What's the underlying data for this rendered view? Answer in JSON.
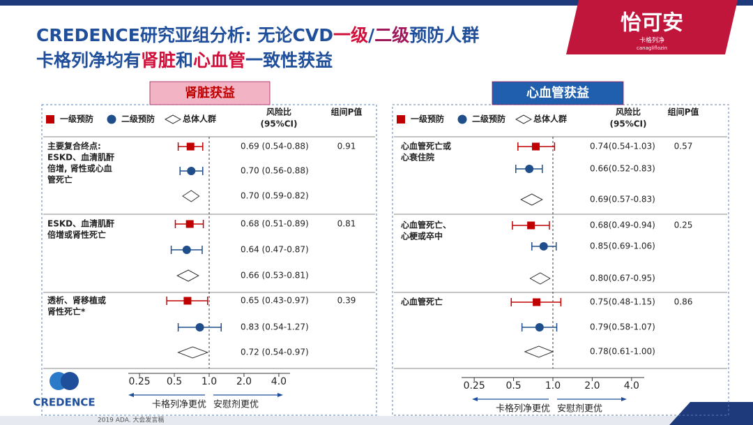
{
  "title": {
    "line1": [
      {
        "text": "CREDENCE研究亚组分析: 无论CVD",
        "color": "#1f4e9a"
      },
      {
        "text": "一级",
        "color": "#d0103a"
      },
      {
        "text": "/",
        "color": "#1f4e9a"
      },
      {
        "text": "二级",
        "color": "#a0185a"
      },
      {
        "text": "预防人群",
        "color": "#1f4e9a"
      }
    ],
    "line2": [
      {
        "text": "卡格列净均有",
        "color": "#1f4e9a"
      },
      {
        "text": "肾脏",
        "color": "#d0103a"
      },
      {
        "text": "和",
        "color": "#1f4e9a"
      },
      {
        "text": "心血管",
        "color": "#d0103a"
      },
      {
        "text": "一致性获益",
        "color": "#1f4e9a"
      }
    ]
  },
  "logo": {
    "name": "怡可安",
    "sub": "卡格列净",
    "latin": "canagliflozin"
  },
  "brand": "CREDENCE",
  "footer": "2019 ADA. 大会发言稿",
  "chart_data": [
    {
      "type": "forest",
      "title": "肾脏获益",
      "log_x": true,
      "hr_header": [
        "风险比",
        "(95%CI)"
      ],
      "p_header": "组间P值",
      "categories": [
        [
          "主要复合终点:",
          "ESKD、血清肌酐",
          "倍增, 肾性或心血",
          "管死亡"
        ],
        [
          "ESKD、血清肌酐",
          "倍增或肾性死亡"
        ],
        [
          "透析、肾移植或",
          "肾性死亡*"
        ]
      ],
      "p_values": [
        0.91,
        0.81,
        0.39
      ],
      "series": [
        {
          "name": "一级预防",
          "color": "#c00000",
          "marker": "square",
          "values": [
            0.69,
            0.68,
            0.65
          ],
          "lower": [
            0.54,
            0.51,
            0.43
          ],
          "upper": [
            0.88,
            0.89,
            0.97
          ],
          "value_labels": [
            "0.69  (0.54-0.88)",
            "0.68  (0.51-0.89)",
            "0.65  (0.43-0.97)"
          ]
        },
        {
          "name": "二级预防",
          "color": "#1f4e8a",
          "marker": "circle",
          "values": [
            0.7,
            0.64,
            0.83
          ],
          "lower": [
            0.56,
            0.47,
            0.54
          ],
          "upper": [
            0.88,
            0.87,
            1.27
          ],
          "value_labels": [
            "0.70  (0.56-0.88)",
            "0.64  (0.47-0.87)",
            "0.83  (0.54-1.27)"
          ]
        },
        {
          "name": "总体人群",
          "color": "#333333",
          "marker": "diamond",
          "values": [
            0.7,
            0.66,
            0.72
          ],
          "lower": [
            0.59,
            0.53,
            0.54
          ],
          "upper": [
            0.82,
            0.81,
            0.97
          ],
          "value_labels": [
            "0.70  (0.59-0.82)",
            "0.66  (0.53-0.81)",
            "0.72  (0.54-0.97)"
          ]
        }
      ],
      "xlim": [
        0.2,
        5
      ],
      "xticks": [
        0.25,
        0.5,
        {
          "value": 1,
          "label": "1.0"
        },
        {
          "value": 2,
          "label": "2.0"
        },
        {
          "value": 4,
          "label": "4.0"
        }
      ],
      "direction_labels": [
        "卡格列净更优",
        "安慰剂更优"
      ]
    },
    {
      "type": "forest",
      "title": "心血管获益",
      "log_x": true,
      "hr_header": [
        "风险比",
        "(95%CI)"
      ],
      "p_header": "组间P值",
      "categories": [
        [
          "心血管死亡或",
          "心衰住院"
        ],
        [
          "心血管死亡、",
          "心梗或卒中"
        ],
        [
          "心血管死亡"
        ]
      ],
      "p_values": [
        0.57,
        0.25,
        0.86
      ],
      "series": [
        {
          "name": "一级预防",
          "color": "#c00000",
          "marker": "square",
          "values": [
            0.74,
            0.68,
            0.75
          ],
          "lower": [
            0.54,
            0.49,
            0.48
          ],
          "upper": [
            1.03,
            0.94,
            1.15
          ],
          "value_labels": [
            "0.74(0.54-1.03)",
            "0.68(0.49-0.94)",
            "0.75(0.48-1.15)"
          ]
        },
        {
          "name": "二级预防",
          "color": "#1f4e8a",
          "marker": "circle",
          "values": [
            0.66,
            0.85,
            0.79
          ],
          "lower": [
            0.52,
            0.69,
            0.58
          ],
          "upper": [
            0.83,
            1.06,
            1.07
          ],
          "value_labels": [
            "0.66(0.52-0.83)",
            "0.85(0.69-1.06)",
            "0.79(0.58-1.07)"
          ]
        },
        {
          "name": "总体人群",
          "color": "#333333",
          "marker": "diamond",
          "values": [
            0.69,
            0.8,
            0.78
          ],
          "lower": [
            0.57,
            0.67,
            0.61
          ],
          "upper": [
            0.83,
            0.95,
            1.0
          ],
          "value_labels": [
            "0.69(0.57-0.83)",
            "0.80(0.67-0.95)",
            "0.78(0.61-1.00)"
          ]
        }
      ],
      "xlim": [
        0.2,
        5
      ],
      "xticks": [
        0.25,
        0.5,
        {
          "value": 1,
          "label": "1.0"
        },
        {
          "value": 2,
          "label": "2.0"
        },
        {
          "value": 4,
          "label": "4.0"
        }
      ],
      "direction_labels": [
        "卡格列净更优",
        "安慰剂更优"
      ]
    }
  ]
}
